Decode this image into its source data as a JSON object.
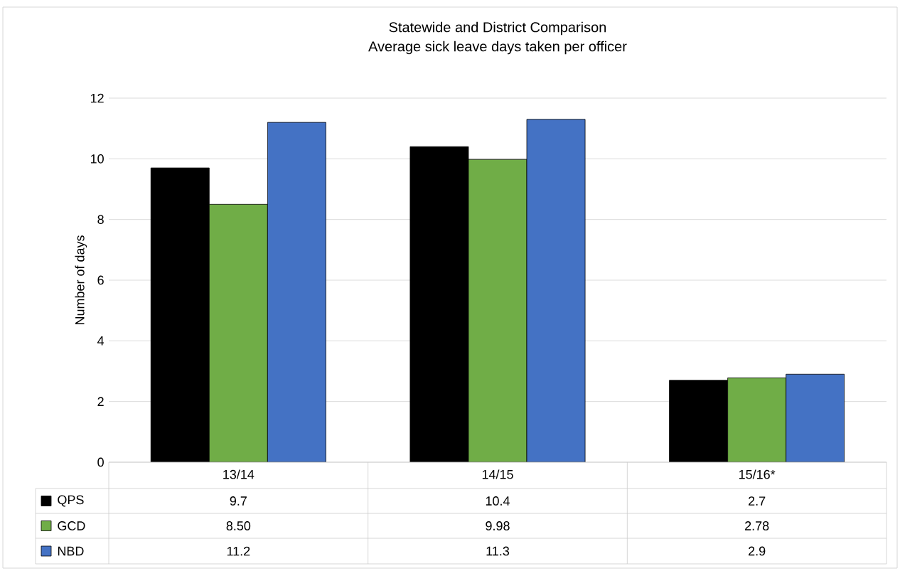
{
  "chart_data": {
    "type": "bar",
    "title": "Statewide and District Comparison",
    "subtitle": "Average  sick leave  days taken per officer",
    "ylabel": "Number of days",
    "categories": [
      "13/14",
      "14/15",
      "15/16*"
    ],
    "series": [
      {
        "name": "QPS",
        "color": "#000000",
        "values": [
          9.7,
          10.4,
          2.7
        ],
        "value_labels": [
          "9.7",
          "10.4",
          "2.7"
        ]
      },
      {
        "name": "GCD",
        "color": "#70ad47",
        "values": [
          8.5,
          9.98,
          2.78
        ],
        "value_labels": [
          "8.50",
          "9.98",
          "2.78"
        ]
      },
      {
        "name": "NBD",
        "color": "#4472c4",
        "values": [
          11.2,
          11.3,
          2.9
        ],
        "value_labels": [
          "11.2",
          "11.3",
          "2.9"
        ]
      }
    ],
    "ylim": [
      0,
      12
    ],
    "yticks": [
      0,
      2,
      4,
      6,
      8,
      10,
      12
    ],
    "grid": "y",
    "legend": "bottom"
  }
}
